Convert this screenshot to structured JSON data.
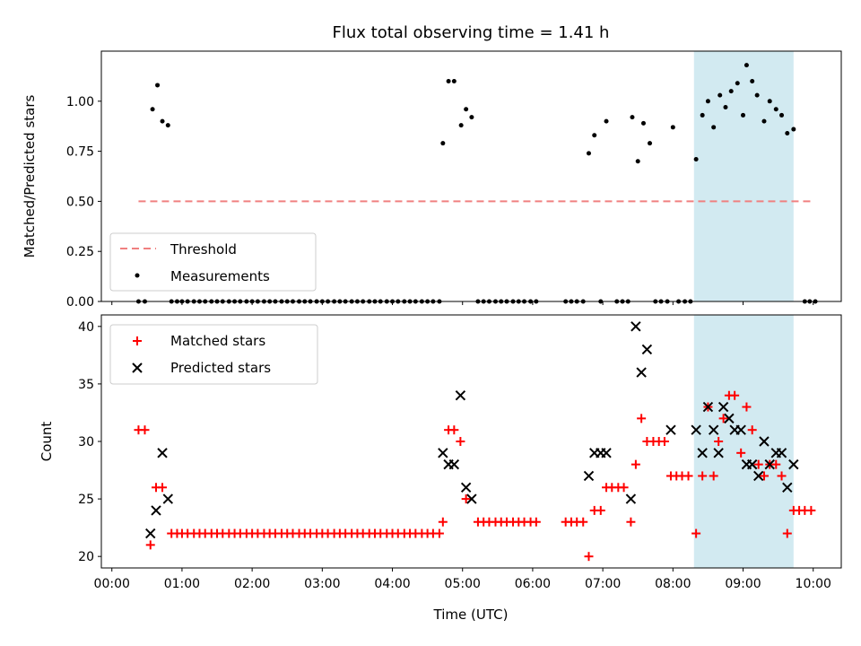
{
  "title": "Flux total observing time = 1.41 h",
  "colors": {
    "threshold": "#f08080",
    "measurement": "#000000",
    "matched": "#ff0000",
    "predicted": "#000000",
    "highlight": "#add8e6"
  },
  "chart_data": [
    {
      "type": "scatter",
      "ylabel": "Matched/Predicted stars",
      "xlabel": "",
      "x_unit": "hours UTC",
      "xlim": [
        -0.15,
        10.4
      ],
      "ylim": [
        0,
        1.25
      ],
      "yticks": [
        "0.00",
        "0.25",
        "0.50",
        "0.75",
        "1.00"
      ],
      "legend": {
        "position": "lower-left",
        "entries": [
          "Threshold",
          "Measurements"
        ]
      },
      "highlight_band": [
        8.3,
        9.72
      ],
      "threshold": {
        "name": "Threshold",
        "y": 0.5,
        "x": [
          0.38,
          10.0
        ]
      },
      "series": [
        {
          "name": "Measurements",
          "points": [
            [
              0.58,
              0.96
            ],
            [
              0.65,
              1.08
            ],
            [
              0.72,
              0.9
            ],
            [
              0.8,
              0.88
            ],
            [
              4.72,
              0.79
            ],
            [
              4.8,
              1.1
            ],
            [
              4.88,
              1.1
            ],
            [
              4.98,
              0.88
            ],
            [
              5.05,
              0.96
            ],
            [
              5.13,
              0.92
            ],
            [
              6.8,
              0.74
            ],
            [
              6.88,
              0.83
            ],
            [
              7.05,
              0.9
            ],
            [
              7.42,
              0.92
            ],
            [
              7.5,
              0.7
            ],
            [
              7.58,
              0.89
            ],
            [
              7.67,
              0.79
            ],
            [
              8.0,
              0.87
            ],
            [
              8.33,
              0.71
            ],
            [
              8.42,
              0.93
            ],
            [
              8.5,
              1.0
            ],
            [
              8.58,
              0.87
            ],
            [
              8.67,
              1.03
            ],
            [
              8.75,
              0.97
            ],
            [
              8.83,
              1.05
            ],
            [
              8.92,
              1.09
            ],
            [
              9.0,
              0.93
            ],
            [
              9.05,
              1.18
            ],
            [
              9.13,
              1.1
            ],
            [
              9.2,
              1.03
            ],
            [
              9.3,
              0.9
            ],
            [
              9.38,
              1.0
            ],
            [
              9.47,
              0.96
            ],
            [
              9.55,
              0.93
            ],
            [
              9.63,
              0.84
            ],
            [
              9.72,
              0.86
            ]
          ],
          "zero_x": [
            0.38,
            0.47,
            0.85,
            0.93,
            1.0,
            1.08,
            1.17,
            1.25,
            1.33,
            1.42,
            1.5,
            1.58,
            1.67,
            1.75,
            1.83,
            1.92,
            2.0,
            2.08,
            2.17,
            2.25,
            2.33,
            2.42,
            2.5,
            2.58,
            2.67,
            2.75,
            2.83,
            2.92,
            3.0,
            3.08,
            3.17,
            3.25,
            3.33,
            3.42,
            3.5,
            3.58,
            3.67,
            3.75,
            3.83,
            3.92,
            4.0,
            4.08,
            4.17,
            4.25,
            4.33,
            4.42,
            4.5,
            4.58,
            4.67,
            5.22,
            5.3,
            5.38,
            5.47,
            5.55,
            5.63,
            5.72,
            5.8,
            5.88,
            5.97,
            6.05,
            6.47,
            6.55,
            6.63,
            6.72,
            6.97,
            7.2,
            7.28,
            7.36,
            7.75,
            7.83,
            7.92,
            8.08,
            8.17,
            8.25,
            9.88,
            9.95,
            10.03
          ]
        }
      ]
    },
    {
      "type": "scatter",
      "ylabel": "Count",
      "xlabel": "Time (UTC)",
      "x_unit": "hours UTC",
      "xlim": [
        -0.15,
        10.4
      ],
      "ylim": [
        19,
        41
      ],
      "yticks": [
        "20",
        "25",
        "30",
        "35",
        "40"
      ],
      "xticks": [
        "00:00",
        "01:00",
        "02:00",
        "03:00",
        "04:00",
        "05:00",
        "06:00",
        "07:00",
        "08:00",
        "09:00",
        "10:00"
      ],
      "legend": {
        "position": "upper-left",
        "entries": [
          "Matched stars",
          "Predicted stars"
        ]
      },
      "highlight_band": [
        8.3,
        9.72
      ],
      "series": [
        {
          "name": "Matched stars",
          "marker": "plus",
          "points": [
            [
              0.38,
              31
            ],
            [
              0.47,
              31
            ],
            [
              0.55,
              21
            ],
            [
              0.63,
              26
            ],
            [
              0.72,
              26
            ],
            [
              4.72,
              23
            ],
            [
              4.8,
              31
            ],
            [
              4.88,
              31
            ],
            [
              4.97,
              30
            ],
            [
              5.05,
              25
            ],
            [
              5.22,
              23
            ],
            [
              5.3,
              23
            ],
            [
              5.38,
              23
            ],
            [
              5.47,
              23
            ],
            [
              5.55,
              23
            ],
            [
              5.63,
              23
            ],
            [
              5.72,
              23
            ],
            [
              5.8,
              23
            ],
            [
              5.88,
              23
            ],
            [
              5.97,
              23
            ],
            [
              6.05,
              23
            ],
            [
              6.47,
              23
            ],
            [
              6.55,
              23
            ],
            [
              6.63,
              23
            ],
            [
              6.72,
              23
            ],
            [
              6.8,
              20
            ],
            [
              6.88,
              24
            ],
            [
              6.97,
              24
            ],
            [
              7.05,
              26
            ],
            [
              7.13,
              26
            ],
            [
              7.22,
              26
            ],
            [
              7.3,
              26
            ],
            [
              7.4,
              23
            ],
            [
              7.47,
              28
            ],
            [
              7.55,
              32
            ],
            [
              7.63,
              30
            ],
            [
              7.72,
              30
            ],
            [
              7.8,
              30
            ],
            [
              7.88,
              30
            ],
            [
              7.97,
              27
            ],
            [
              8.05,
              27
            ],
            [
              8.13,
              27
            ],
            [
              8.22,
              27
            ],
            [
              8.33,
              22
            ],
            [
              8.42,
              27
            ],
            [
              8.5,
              33
            ],
            [
              8.58,
              27
            ],
            [
              8.65,
              30
            ],
            [
              8.72,
              32
            ],
            [
              8.8,
              34
            ],
            [
              8.88,
              34
            ],
            [
              8.97,
              29
            ],
            [
              9.05,
              33
            ],
            [
              9.13,
              31
            ],
            [
              9.22,
              28
            ],
            [
              9.3,
              27
            ],
            [
              9.38,
              28
            ],
            [
              9.47,
              28
            ],
            [
              9.55,
              27
            ],
            [
              9.63,
              22
            ],
            [
              9.72,
              24
            ],
            [
              9.8,
              24
            ],
            [
              9.88,
              24
            ],
            [
              9.97,
              24
            ],
            [
              0.85,
              22
            ],
            [
              0.93,
              22
            ],
            [
              1.0,
              22
            ],
            [
              1.08,
              22
            ],
            [
              1.17,
              22
            ],
            [
              1.25,
              22
            ],
            [
              1.33,
              22
            ],
            [
              1.42,
              22
            ],
            [
              1.5,
              22
            ],
            [
              1.58,
              22
            ],
            [
              1.67,
              22
            ],
            [
              1.75,
              22
            ],
            [
              1.83,
              22
            ],
            [
              1.92,
              22
            ],
            [
              2.0,
              22
            ],
            [
              2.08,
              22
            ],
            [
              2.17,
              22
            ],
            [
              2.25,
              22
            ],
            [
              2.33,
              22
            ],
            [
              2.42,
              22
            ],
            [
              2.5,
              22
            ],
            [
              2.58,
              22
            ],
            [
              2.67,
              22
            ],
            [
              2.75,
              22
            ],
            [
              2.83,
              22
            ],
            [
              2.92,
              22
            ],
            [
              3.0,
              22
            ],
            [
              3.08,
              22
            ],
            [
              3.17,
              22
            ],
            [
              3.25,
              22
            ],
            [
              3.33,
              22
            ],
            [
              3.42,
              22
            ],
            [
              3.5,
              22
            ],
            [
              3.58,
              22
            ],
            [
              3.67,
              22
            ],
            [
              3.75,
              22
            ],
            [
              3.83,
              22
            ],
            [
              3.92,
              22
            ],
            [
              4.0,
              22
            ],
            [
              4.08,
              22
            ],
            [
              4.17,
              22
            ],
            [
              4.25,
              22
            ],
            [
              4.33,
              22
            ],
            [
              4.42,
              22
            ],
            [
              4.5,
              22
            ],
            [
              4.58,
              22
            ],
            [
              4.67,
              22
            ]
          ]
        },
        {
          "name": "Predicted stars",
          "marker": "x",
          "points": [
            [
              0.55,
              22
            ],
            [
              0.63,
              24
            ],
            [
              0.72,
              29
            ],
            [
              0.8,
              25
            ],
            [
              4.72,
              29
            ],
            [
              4.8,
              28
            ],
            [
              4.88,
              28
            ],
            [
              4.97,
              34
            ],
            [
              5.05,
              26
            ],
            [
              5.13,
              25
            ],
            [
              6.8,
              27
            ],
            [
              6.88,
              29
            ],
            [
              6.97,
              29
            ],
            [
              7.05,
              29
            ],
            [
              7.4,
              25
            ],
            [
              7.47,
              40
            ],
            [
              7.55,
              36
            ],
            [
              7.63,
              38
            ],
            [
              7.97,
              31
            ],
            [
              8.33,
              31
            ],
            [
              8.42,
              29
            ],
            [
              8.5,
              33
            ],
            [
              8.58,
              31
            ],
            [
              8.65,
              29
            ],
            [
              8.72,
              33
            ],
            [
              8.8,
              32
            ],
            [
              8.88,
              31
            ],
            [
              8.97,
              31
            ],
            [
              9.05,
              28
            ],
            [
              9.13,
              28
            ],
            [
              9.22,
              27
            ],
            [
              9.3,
              30
            ],
            [
              9.38,
              28
            ],
            [
              9.47,
              29
            ],
            [
              9.55,
              29
            ],
            [
              9.63,
              26
            ],
            [
              9.72,
              28
            ]
          ]
        }
      ]
    }
  ]
}
